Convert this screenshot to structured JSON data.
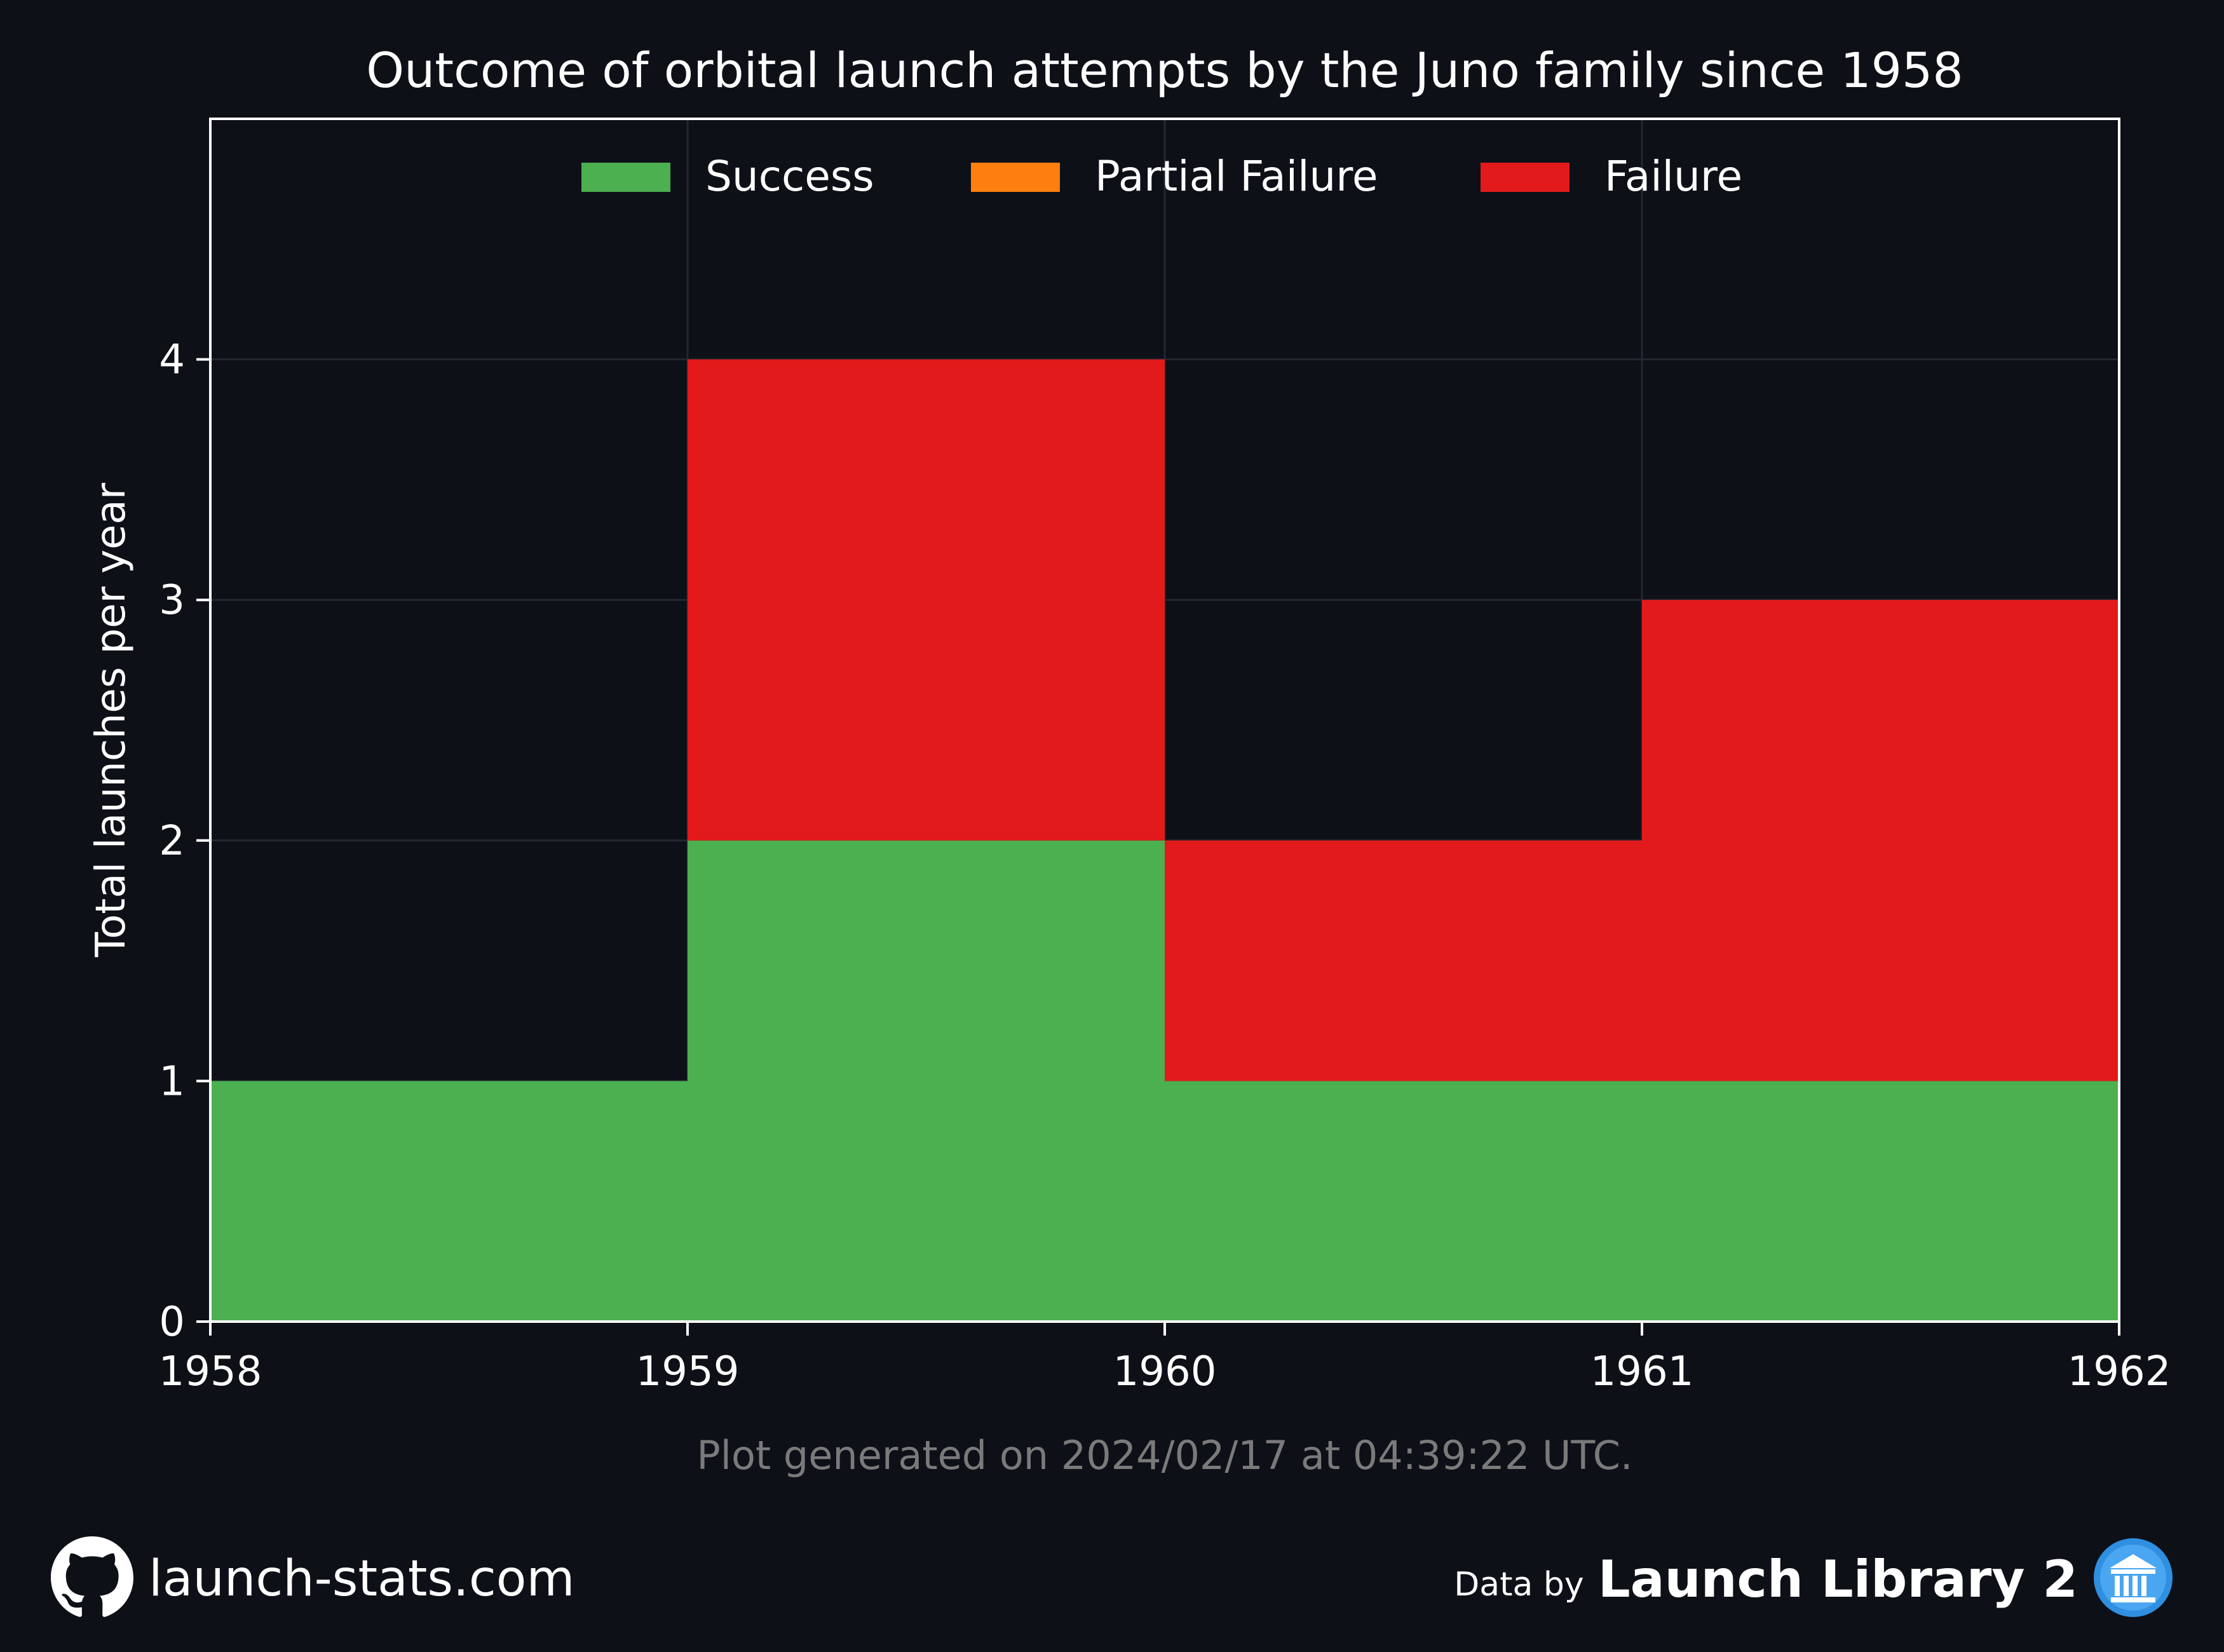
{
  "chart_data": {
    "type": "bar",
    "title": "Outcome of orbital launch attempts by the Juno family since 1958",
    "ylabel": "Total launches per year",
    "xlabel": "",
    "x_ticks": [
      "1958",
      "1959",
      "1960",
      "1961",
      "1962"
    ],
    "y_ticks": [
      "0",
      "1",
      "2",
      "3",
      "4"
    ],
    "xlim": [
      1958,
      1962
    ],
    "ylim": [
      0,
      5
    ],
    "stacked": true,
    "grid": true,
    "legend_position": "top-center",
    "categories": [
      1958,
      1959,
      1960,
      1961
    ],
    "series": [
      {
        "name": "Success",
        "color": "#4caf50",
        "values": [
          1,
          2,
          1,
          1
        ]
      },
      {
        "name": "Partial Failure",
        "color": "#ff7f0e",
        "values": [
          0,
          0,
          0,
          0
        ]
      },
      {
        "name": "Failure",
        "color": "#e31a1c",
        "values": [
          0,
          2,
          1,
          2
        ]
      }
    ],
    "note": "Plot generated on 2024/02/17 at 04:39:22 UTC."
  },
  "footer": {
    "site": "launch-stats.com",
    "site_icon": "github-icon",
    "data_prefix": "Data by",
    "data_source": "Launch Library 2",
    "source_icon": "launch-library-icon"
  },
  "colors": {
    "background": "#0d1017",
    "axis": "#ffffff",
    "grid": "#232730",
    "note": "#7a7a7a"
  }
}
